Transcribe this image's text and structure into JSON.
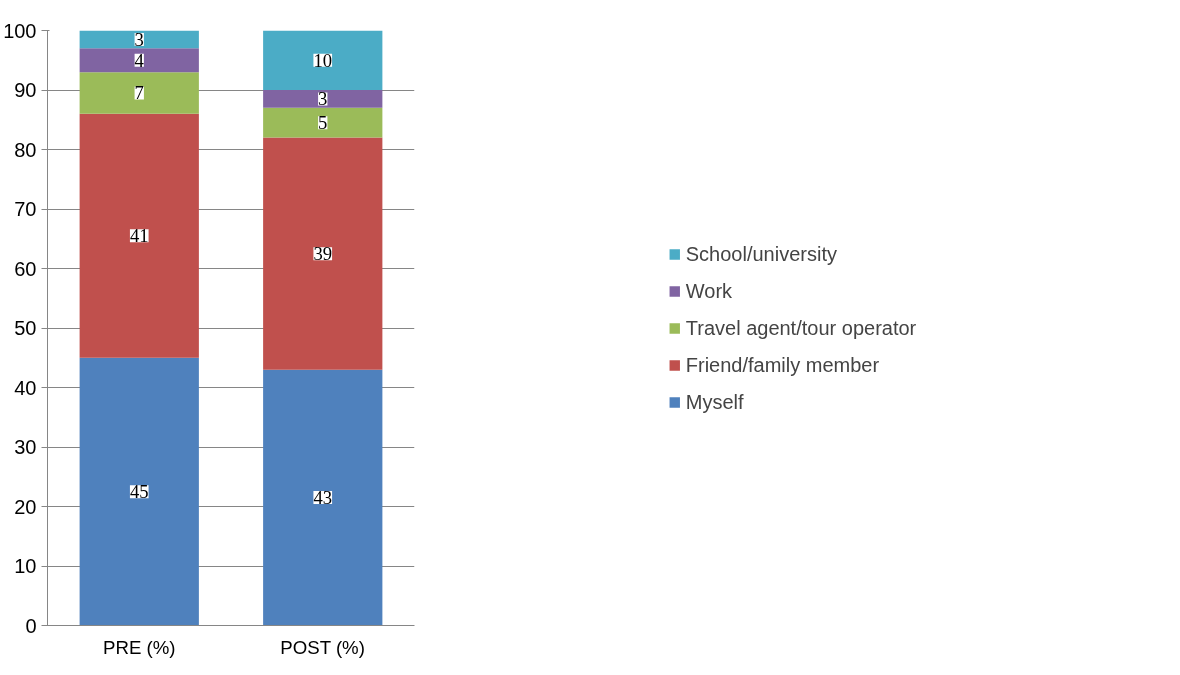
{
  "chart_data": {
    "type": "bar",
    "stacked": true,
    "categories": [
      "PRE (%)",
      "POST (%)"
    ],
    "series": [
      {
        "name": "Myself",
        "color": "#4f81bd",
        "values": [
          45,
          43
        ]
      },
      {
        "name": "Friend/family member",
        "color": "#c0504d",
        "values": [
          41,
          39
        ]
      },
      {
        "name": "Travel agent/tour operator",
        "color": "#9bbb59",
        "values": [
          7,
          5
        ]
      },
      {
        "name": "Work",
        "color": "#8064a2",
        "values": [
          4,
          3
        ]
      },
      {
        "name": "School/university",
        "color": "#4bacc6",
        "values": [
          3,
          10
        ]
      }
    ],
    "ylim": [
      0,
      100
    ],
    "yticks": [
      0,
      10,
      20,
      30,
      40,
      50,
      60,
      70,
      80,
      90,
      100
    ],
    "grid": "y",
    "legend": "right",
    "data_labels": true
  }
}
